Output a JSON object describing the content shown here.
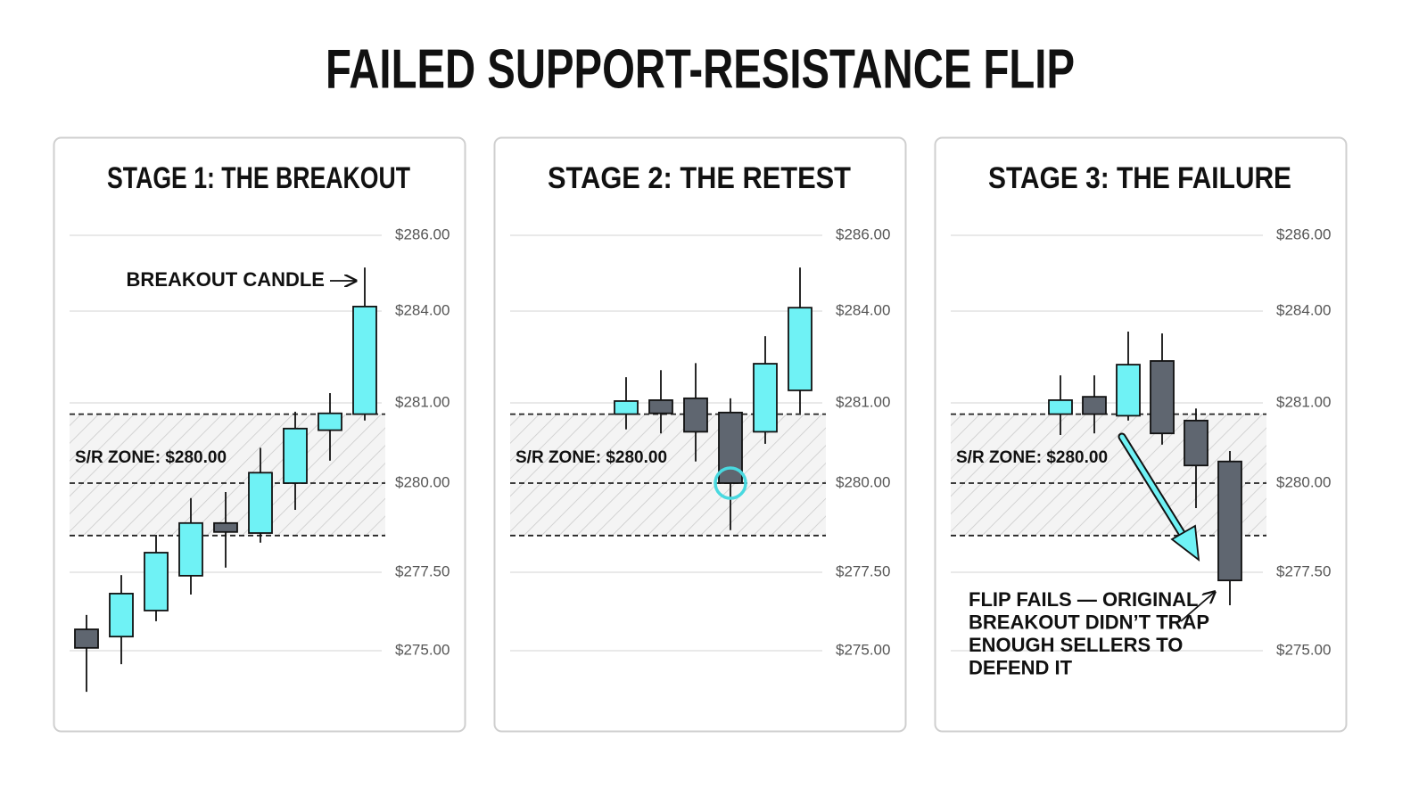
{
  "title": "FAILED SUPPORT-RESISTANCE FLIP",
  "chart_data": [
    {
      "type": "candlestick",
      "title": "STAGE 1: THE BREAKOUT",
      "up_color": "#6ff2f5",
      "down_color": "#5f6670",
      "ylim": [
        273.5,
        286
      ],
      "yticks": [
        {
          "value": 286,
          "label": "$286.00"
        },
        {
          "value": 284,
          "label": "$284.00"
        },
        {
          "value": 281,
          "label": "$281.00"
        },
        {
          "value": 280,
          "label": "$280.00"
        },
        {
          "value": 277.5,
          "label": "$277.50"
        },
        {
          "value": 275,
          "label": "$275.00"
        }
      ],
      "zone": {
        "label": "S/R ZONE: $280.00",
        "low": 278.53,
        "mid": 280,
        "high": 280.86
      },
      "annotation": [
        "BREAKOUT CANDLE"
      ],
      "open": [
        275.68,
        275.45,
        276.28,
        277.39,
        278.88,
        278.6,
        280,
        280.66,
        280.86
      ],
      "high": [
        276.14,
        277.41,
        278.55,
        279.58,
        279.75,
        280.44,
        280.89,
        281.32,
        285.15
      ],
      "low": [
        273.69,
        274.57,
        275.94,
        276.79,
        277.63,
        278.33,
        279.25,
        280.28,
        280.78
      ],
      "close": [
        275.09,
        276.82,
        278.05,
        278.88,
        278.63,
        280.13,
        280.68,
        280.87,
        284.12
      ]
    },
    {
      "type": "candlestick",
      "title": "STAGE 2: THE RETEST",
      "up_color": "#6ff2f5",
      "down_color": "#5f6670",
      "ylim": [
        273.5,
        286
      ],
      "yticks": [
        {
          "value": 286,
          "label": "$286.00"
        },
        {
          "value": 284,
          "label": "$284.00"
        },
        {
          "value": 281,
          "label": "$281.00"
        },
        {
          "value": 280,
          "label": "$280.00"
        },
        {
          "value": 277.5,
          "label": "$277.50"
        },
        {
          "value": 275,
          "label": "$275.00"
        }
      ],
      "zone": {
        "label": "S/R ZONE: $280.00",
        "low": 278.53,
        "mid": 280,
        "high": 280.86
      },
      "open": [
        280.86,
        281.09,
        281.15,
        280.88,
        280.64,
        281.41
      ],
      "high": [
        281.84,
        282.07,
        282.3,
        281.15,
        283.18,
        285.15
      ],
      "low": [
        280.67,
        280.62,
        280.27,
        278.68,
        280.49,
        280.87
      ],
      "close": [
        281.06,
        280.87,
        280.64,
        280,
        282.28,
        284.09
      ]
    },
    {
      "type": "candlestick",
      "title": "STAGE 3: THE FAILURE",
      "up_color": "#6ff2f5",
      "down_color": "#5f6670",
      "ylim": [
        273.5,
        286
      ],
      "yticks": [
        {
          "value": 286,
          "label": "$286.00"
        },
        {
          "value": 284,
          "label": "$284.00"
        },
        {
          "value": 281,
          "label": "$281.00"
        },
        {
          "value": 280,
          "label": "$280.00"
        },
        {
          "value": 277.5,
          "label": "$277.50"
        },
        {
          "value": 275,
          "label": "$275.00"
        }
      ],
      "zone": {
        "label": "S/R ZONE: $280.00",
        "low": 278.53,
        "mid": 280,
        "high": 280.86
      },
      "annotation": [
        "FLIP FAILS — ORIGINAL",
        "BREAKOUT DIDN’T TRAP",
        "ENOUGH SELLERS TO",
        "DEFEND IT"
      ],
      "open": [
        280.86,
        281.2,
        280.84,
        282.37,
        280.78,
        280.27
      ],
      "high": [
        281.9,
        281.9,
        283.33,
        283.27,
        280.93,
        280.4
      ],
      "low": [
        280.6,
        280.62,
        280.78,
        280.48,
        279.3,
        276.45
      ],
      "close": [
        281.09,
        280.86,
        282.25,
        280.62,
        280.22,
        277.24
      ]
    }
  ]
}
